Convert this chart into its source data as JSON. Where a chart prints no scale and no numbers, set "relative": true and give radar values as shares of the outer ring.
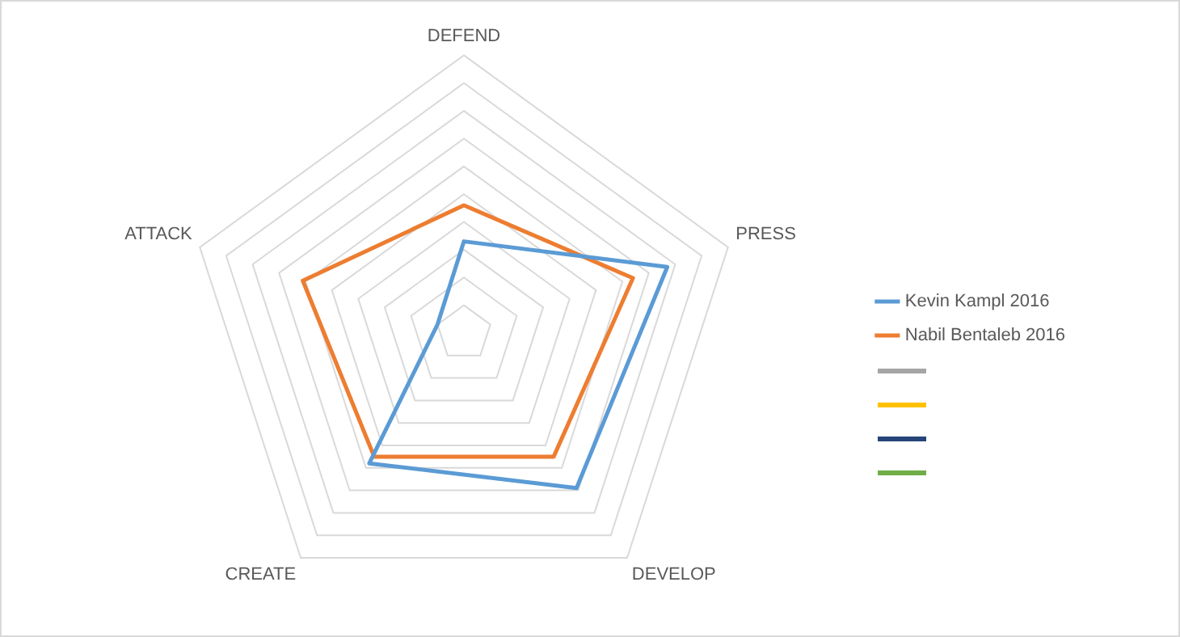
{
  "chart_data": {
    "type": "radar",
    "relative": true,
    "categories": [
      "DEFEND",
      "PRESS",
      "DEVELOP",
      "CREATE",
      "ATTACK"
    ],
    "series": [
      {
        "name": "Kevin Kampl 2016",
        "color": "#5b9bd5",
        "values": [
          0.33,
          0.77,
          0.69,
          0.58,
          0.1
        ]
      },
      {
        "name": "Nabil Bentaleb 2016",
        "color": "#ed7d31",
        "values": [
          0.46,
          0.64,
          0.55,
          0.55,
          0.61
        ]
      }
    ],
    "grid": true,
    "legend": "right",
    "marker": "none",
    "line_style": "solid"
  }
}
